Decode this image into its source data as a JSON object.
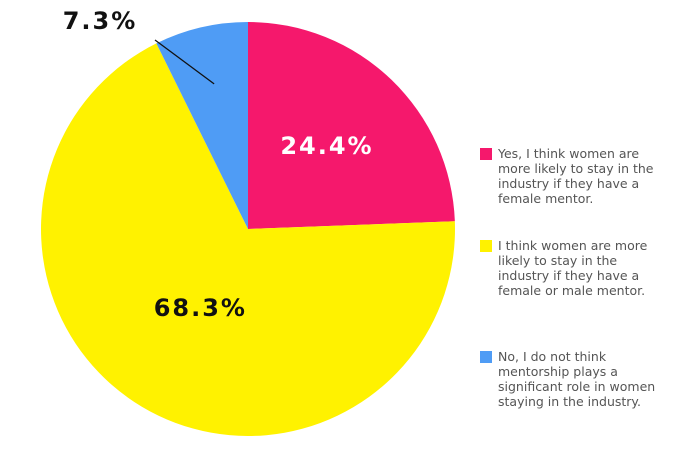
{
  "chart_data": {
    "type": "pie",
    "categories": [
      "Yes, I think women are more likely to stay in the industry if they have a female mentor.",
      "I think women are more likely to stay in the industry if they have a female or male mentor.",
      "No, I do not think mentorship plays a significant role in women staying in the industry."
    ],
    "values": [
      24.4,
      68.3,
      7.3
    ],
    "value_labels": [
      "24.4%",
      "68.3%",
      "7.3%"
    ],
    "colors": [
      "#f5186c",
      "#fff200",
      "#4f9cf5"
    ]
  }
}
